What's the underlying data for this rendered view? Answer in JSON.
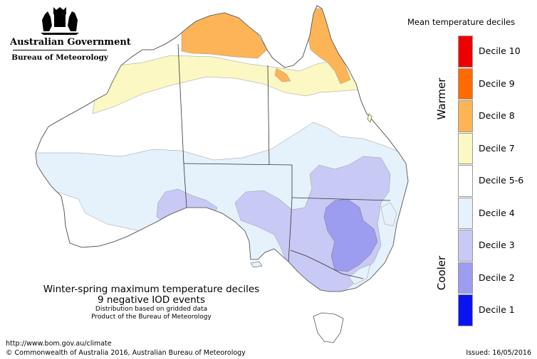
{
  "header": {
    "government": "Australian Government",
    "bureau": "Bureau of Meteorology"
  },
  "legend": {
    "title": "Mean temperature deciles",
    "warmer_label": "Warmer",
    "cooler_label": "Cooler",
    "items": [
      {
        "label": "Decile 10",
        "color": "#ee0000"
      },
      {
        "label": "Decile 9",
        "color": "#ff6a00"
      },
      {
        "label": "Decile 8",
        "color": "#fcb457"
      },
      {
        "label": "Decile 7",
        "color": "#fbf8c4"
      },
      {
        "label": "Decile 5-6",
        "color": "#ffffff"
      },
      {
        "label": "Decile 4",
        "color": "#e5f1fb"
      },
      {
        "label": "Decile 3",
        "color": "#c9c9f5"
      },
      {
        "label": "Decile 2",
        "color": "#9c9cf0"
      },
      {
        "label": "Decile 1",
        "color": "#0a14f0"
      }
    ]
  },
  "caption": {
    "title": "Winter-spring maximum temperature deciles",
    "subtitle": "9 negative IOD events",
    "line1": "Distribution based on gridded data",
    "line2": "Product of the Bureau of Meteorology"
  },
  "footer": {
    "url": "http://www.bom.gov.au/climate",
    "copyright": "© Commonwealth of Australia 2016, Australian Bureau of Meteorology",
    "issued": "Issued: 16/05/2016"
  }
}
